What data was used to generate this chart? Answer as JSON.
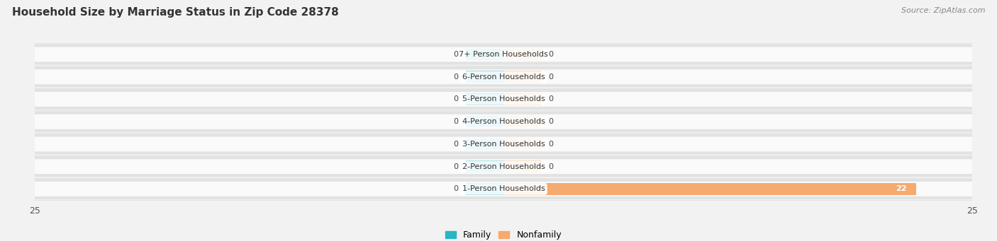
{
  "title": "Household Size by Marriage Status in Zip Code 28378",
  "source": "Source: ZipAtlas.com",
  "categories": [
    "7+ Person Households",
    "6-Person Households",
    "5-Person Households",
    "4-Person Households",
    "3-Person Households",
    "2-Person Households",
    "1-Person Households"
  ],
  "family_values": [
    0,
    0,
    0,
    0,
    0,
    0,
    0
  ],
  "nonfamily_values": [
    0,
    0,
    0,
    0,
    0,
    0,
    22
  ],
  "family_color": "#29b5c3",
  "nonfamily_color": "#f5aa6e",
  "stub_size": 2.0,
  "xlim": 25,
  "bar_height": 0.52,
  "bg_color": "#f2f2f2",
  "row_outer_color": "#e2e2e2",
  "row_inner_color": "#fafafa",
  "title_fontsize": 11,
  "source_fontsize": 8,
  "label_fontsize": 8,
  "value_fontsize": 8,
  "tick_fontsize": 9,
  "legend_fontsize": 9
}
